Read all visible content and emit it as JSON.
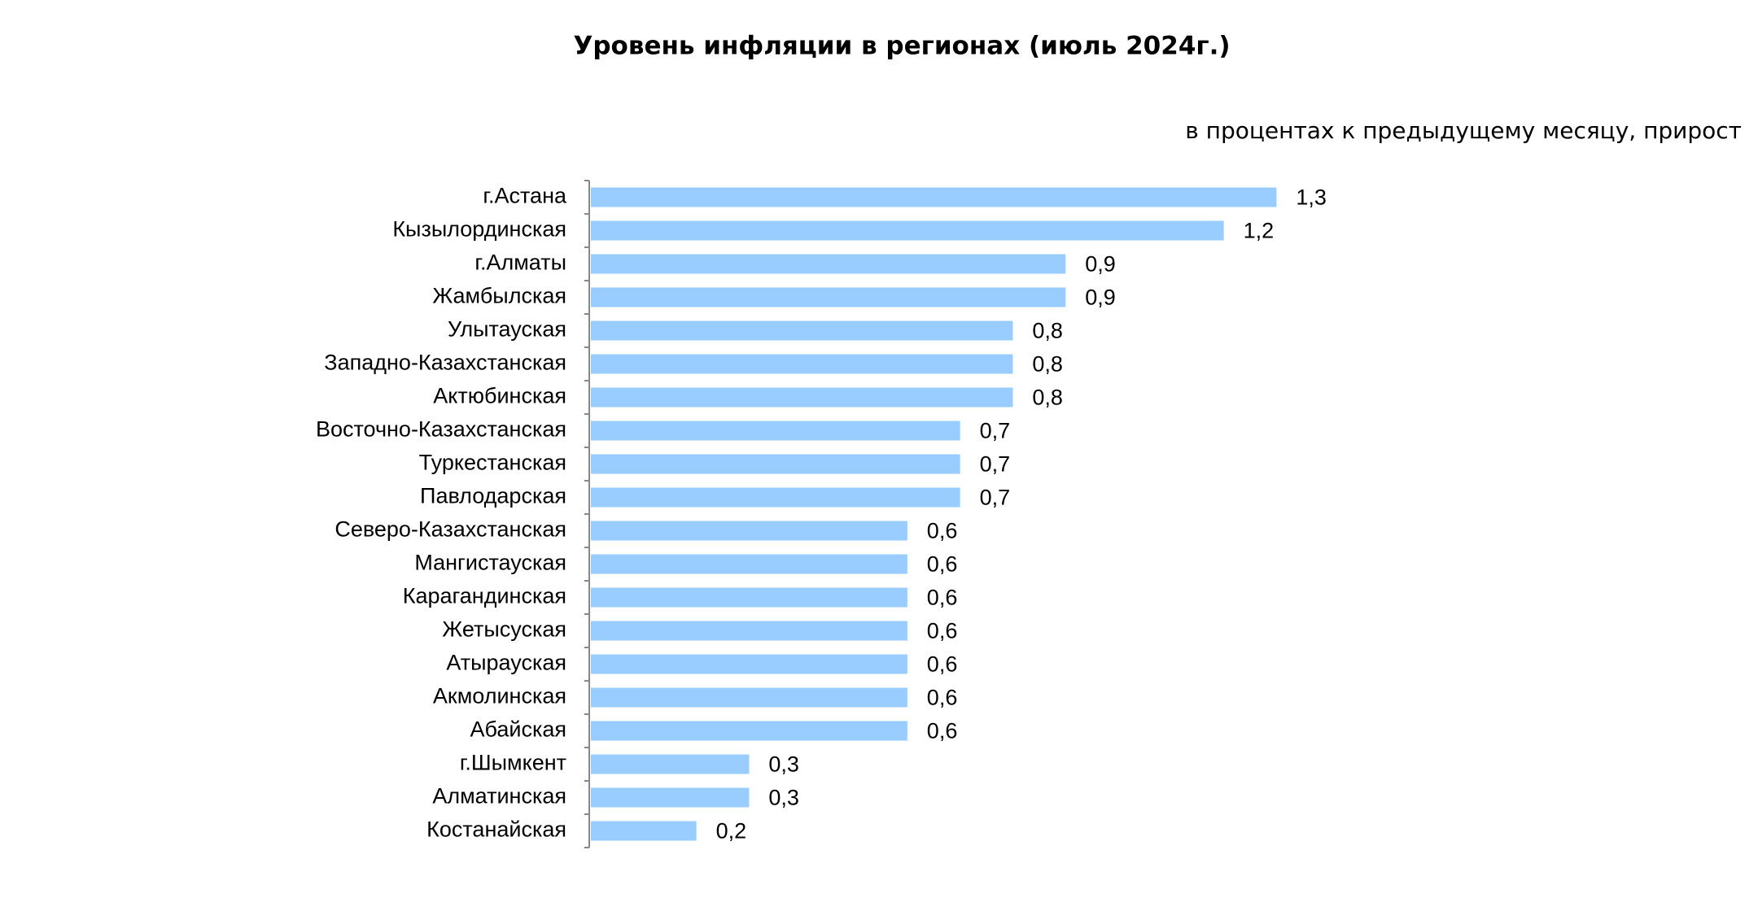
{
  "chart_data": {
    "type": "bar",
    "orientation": "horizontal",
    "title": "Уровень инфляции в регионах (июль 2024г.)",
    "subtitle": "в процентах к предыдущему месяцу, прирост",
    "color": "#99ccff",
    "categories": [
      "г.Астана",
      "Кызылординская",
      "г.Алматы",
      "Жамбылская",
      "Улытауская",
      "Западно-Казахстанская",
      "Актюбинская",
      "Восточно-Казахстанская",
      "Туркестанская",
      "Павлодарская",
      "Северо-Казахстанская",
      "Мангистауская",
      "Карагандинская",
      "Жетысуская",
      "Атырауская",
      "Акмолинская",
      "Абайская",
      "г.Шымкент",
      "Алматинская",
      "Костанайская"
    ],
    "values": [
      1.3,
      1.2,
      0.9,
      0.9,
      0.8,
      0.8,
      0.8,
      0.7,
      0.7,
      0.7,
      0.6,
      0.6,
      0.6,
      0.6,
      0.6,
      0.6,
      0.6,
      0.3,
      0.3,
      0.2
    ],
    "value_labels": [
      "1,3",
      "1,2",
      "0,9",
      "0,9",
      "0,8",
      "0,8",
      "0,8",
      "0,7",
      "0,7",
      "0,7",
      "0,6",
      "0,6",
      "0,6",
      "0,6",
      "0,6",
      "0,6",
      "0,6",
      "0,3",
      "0,3",
      "0,2"
    ]
  }
}
